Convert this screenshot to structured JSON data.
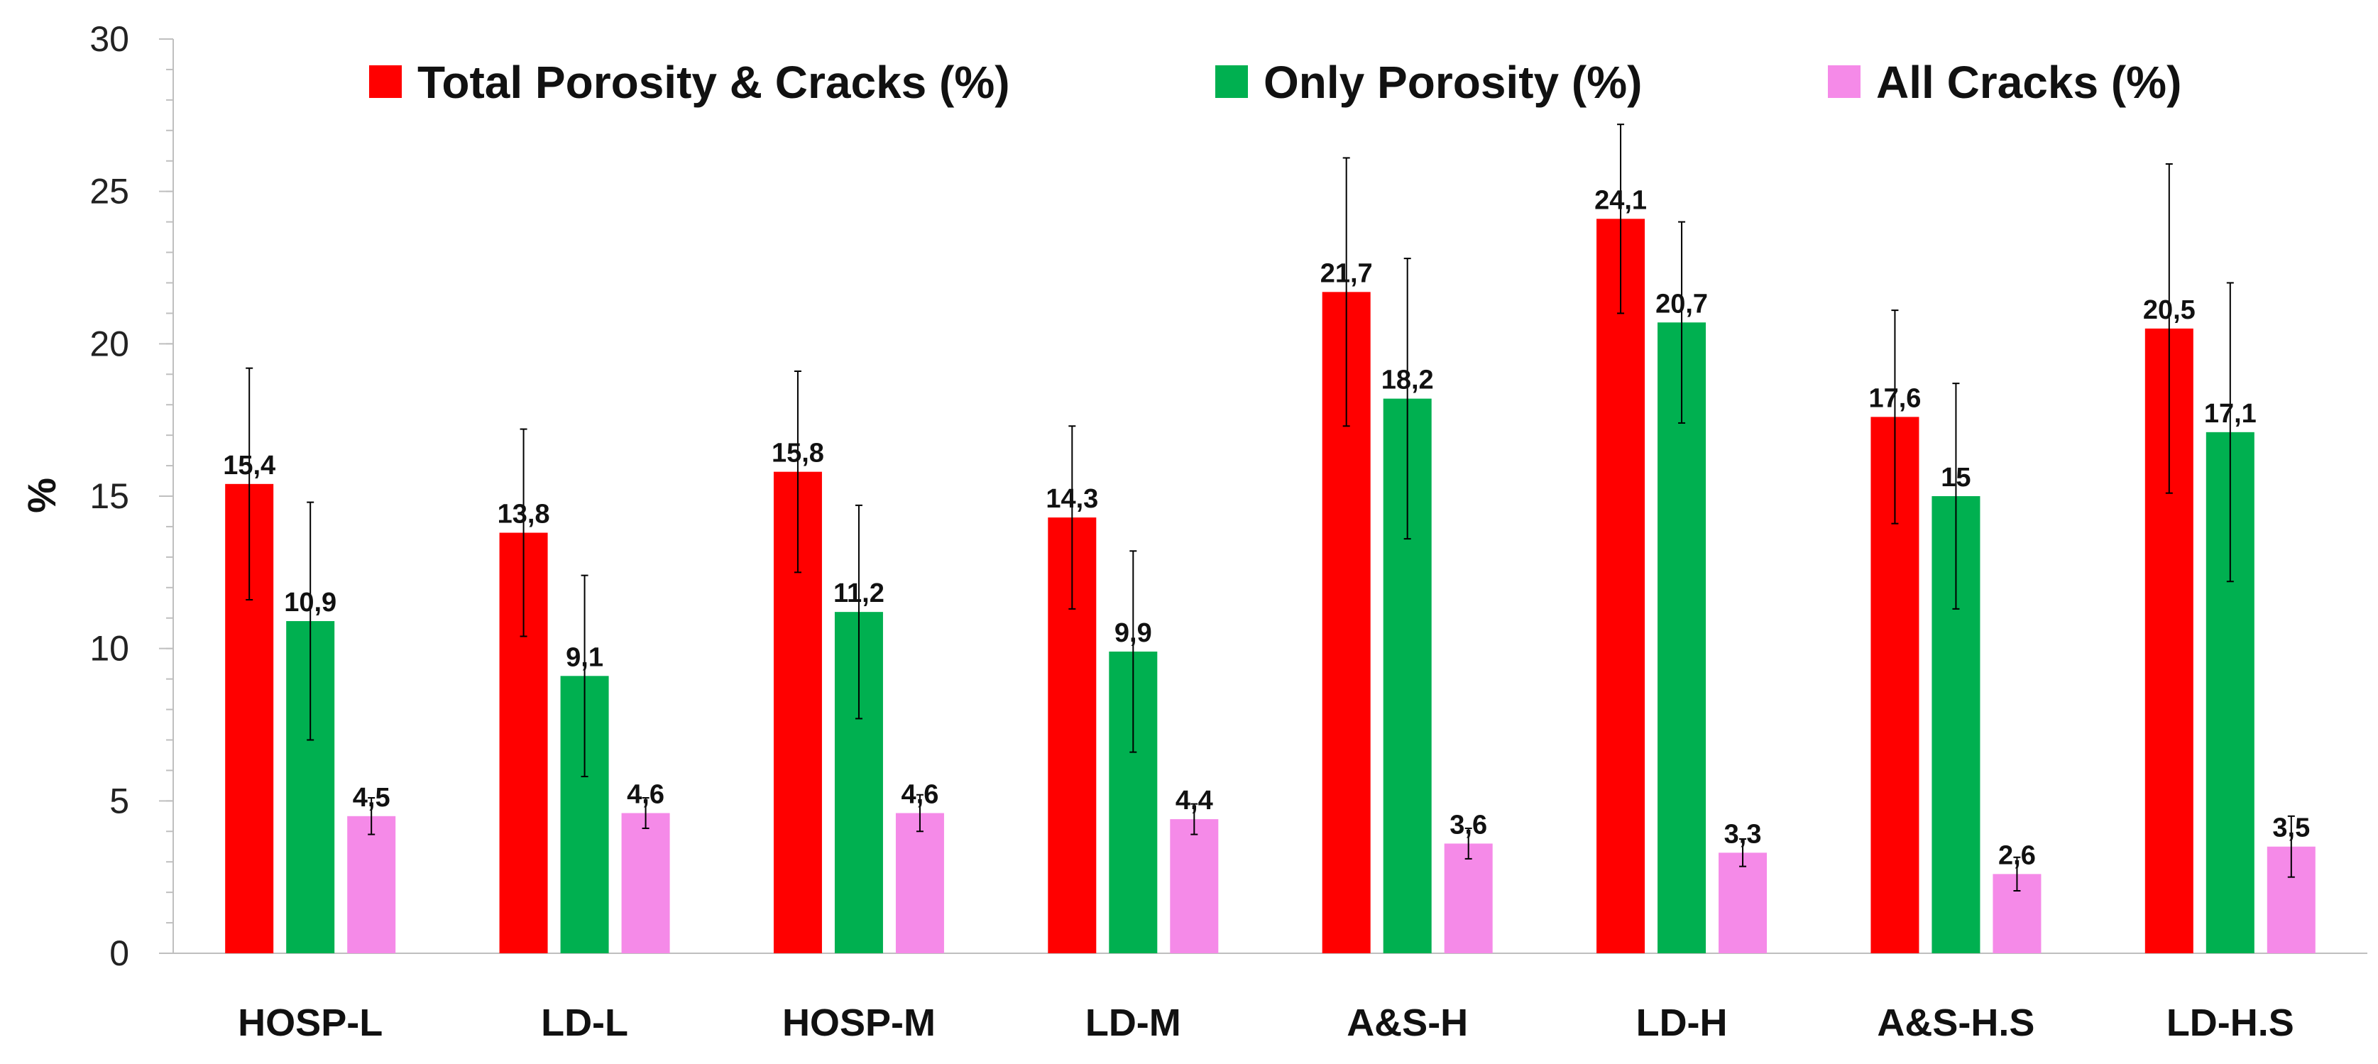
{
  "chart_data": {
    "type": "bar",
    "title": "",
    "xlabel": "",
    "ylabel": "%",
    "ylim": [
      0,
      30
    ],
    "y_ticks": [
      0,
      5,
      10,
      15,
      20,
      25,
      30
    ],
    "y_tick_labels": [
      "0",
      "5",
      "10",
      "15",
      "20",
      "25",
      "30"
    ],
    "grid": false,
    "legend_position": "top",
    "decimal_separator": ",",
    "categories": [
      "HOSP-L",
      "LD-L",
      "HOSP-M",
      "LD-M",
      "A&S-H",
      "LD-H",
      "A&S-H.S",
      "LD-H.S"
    ],
    "series": [
      {
        "name": "Total Porosity & Cracks (%)",
        "color": "#ff0000",
        "values": [
          15.4,
          13.8,
          15.8,
          14.3,
          21.7,
          24.1,
          17.6,
          20.5
        ],
        "labels": [
          "15,4",
          "13,8",
          "15,8",
          "14,3",
          "21,7",
          "24,1",
          "17,6",
          "20,5"
        ],
        "errors": [
          3.8,
          3.4,
          3.3,
          3.0,
          4.4,
          3.1,
          3.5,
          5.4
        ]
      },
      {
        "name": "Only Porosity (%)",
        "color": "#00b050",
        "values": [
          10.9,
          9.1,
          11.2,
          9.9,
          18.2,
          20.7,
          15.0,
          17.1
        ],
        "labels": [
          "10,9",
          "9,1",
          "11,2",
          "9,9",
          "18,2",
          "20,7",
          "15",
          "17,1"
        ],
        "errors": [
          3.9,
          3.3,
          3.5,
          3.3,
          4.6,
          3.3,
          3.7,
          4.9
        ]
      },
      {
        "name": "All Cracks (%)",
        "color": "#f58ae8",
        "values": [
          4.5,
          4.6,
          4.6,
          4.4,
          3.6,
          3.3,
          2.6,
          3.5
        ],
        "labels": [
          "4,5",
          "4,6",
          "4,6",
          "4,4",
          "3,6",
          "3,3",
          "2,6",
          "3,5"
        ],
        "errors": [
          0.6,
          0.5,
          0.6,
          0.5,
          0.5,
          0.45,
          0.55,
          1.0
        ]
      }
    ]
  }
}
